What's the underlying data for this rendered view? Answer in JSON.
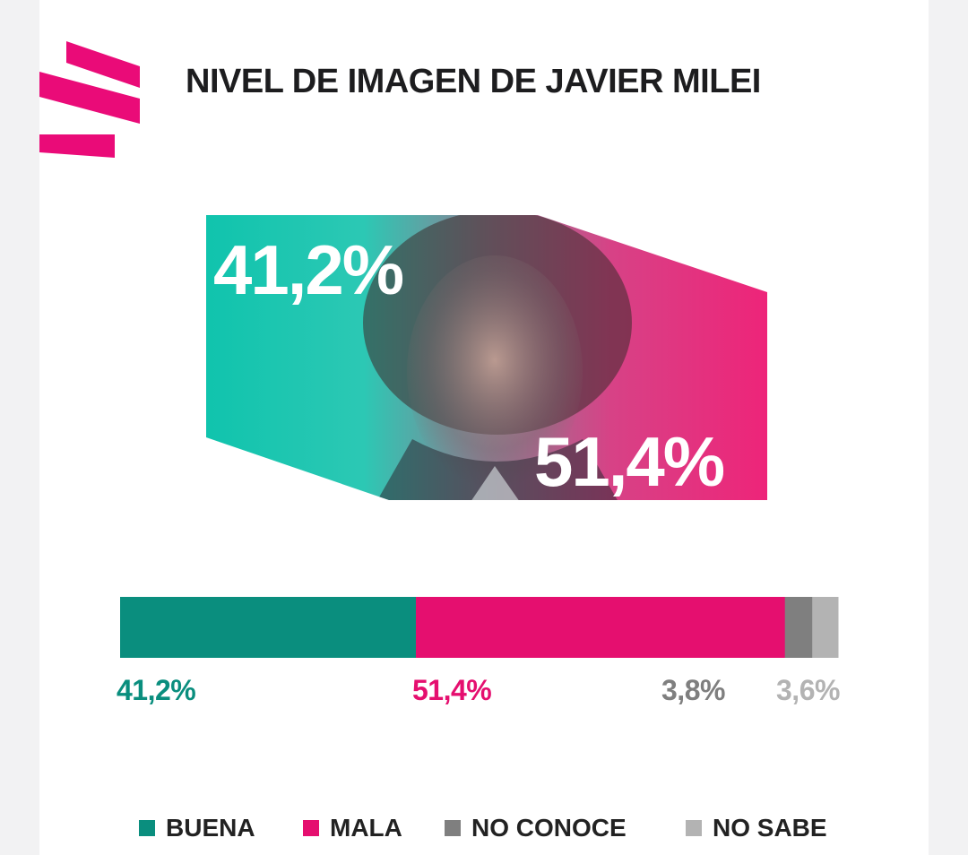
{
  "header": {
    "title": "NIVEL DE IMAGEN DE JAVIER MILEI"
  },
  "hero": {
    "good_pct": "41,2%",
    "bad_pct": "51,4%"
  },
  "colors": {
    "buena": "#0a8e7e",
    "mala": "#e50f6f",
    "no_conoce": "#7f7f7f",
    "no_sabe": "#b3b3b3",
    "hero_teal": "#10c4ad",
    "hero_pink": "#ee2479",
    "logo": "#ea0b78"
  },
  "chart_data": {
    "type": "bar",
    "orientation": "horizontal-stacked",
    "title": "NIVEL DE IMAGEN DE JAVIER MILEI",
    "categories": [
      "BUENA",
      "MALA",
      "NO CONOCE",
      "NO SABE"
    ],
    "values": [
      41.2,
      51.4,
      3.8,
      3.6
    ],
    "value_labels": [
      "41,2%",
      "51,4%",
      "3,8%",
      "3,6%"
    ],
    "unit": "%",
    "legend_position": "bottom"
  }
}
